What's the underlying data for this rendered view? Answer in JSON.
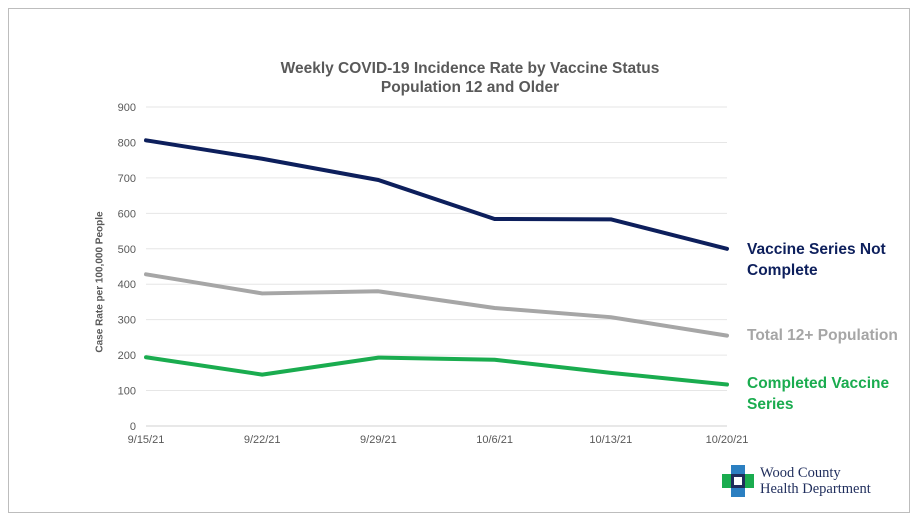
{
  "chart_data": {
    "type": "line",
    "title": "Weekly COVID-19  Incidence Rate by Vaccine Status",
    "subtitle": "Population 12 and Older",
    "xlabel": "",
    "ylabel": "Case Rate per 100,000 People",
    "categories": [
      "9/15/21",
      "9/22/21",
      "9/29/21",
      "10/6/21",
      "10/13/21",
      "10/20/21"
    ],
    "ylim": [
      0,
      900
    ],
    "yticks": [
      0,
      100,
      200,
      300,
      400,
      500,
      600,
      700,
      800,
      900
    ],
    "grid": true,
    "legend": "right (labels at line ends)",
    "series": [
      {
        "name": "Vaccine Series Not Complete",
        "name_lines": [
          "Vaccine Series Not",
          "Complete"
        ],
        "color": "#0d1f5c",
        "values": [
          806,
          754,
          694,
          584,
          583,
          500
        ]
      },
      {
        "name": "Total 12+ Population",
        "name_lines": [
          "Total 12+ Population"
        ],
        "color": "#a6a6a6",
        "values": [
          428,
          374,
          380,
          333,
          307,
          255
        ]
      },
      {
        "name": "Completed Vaccine Series",
        "name_lines": [
          "Completed Vaccine",
          "Series"
        ],
        "color": "#1aac4f",
        "values": [
          194,
          145,
          193,
          187,
          150,
          117
        ]
      }
    ]
  },
  "logo": {
    "line1": "Wood County",
    "line2": "Health Department",
    "icon": "cross-logo-icon",
    "colors": [
      "#2b7fc1",
      "#1aac4f",
      "#1f2d5c"
    ]
  }
}
